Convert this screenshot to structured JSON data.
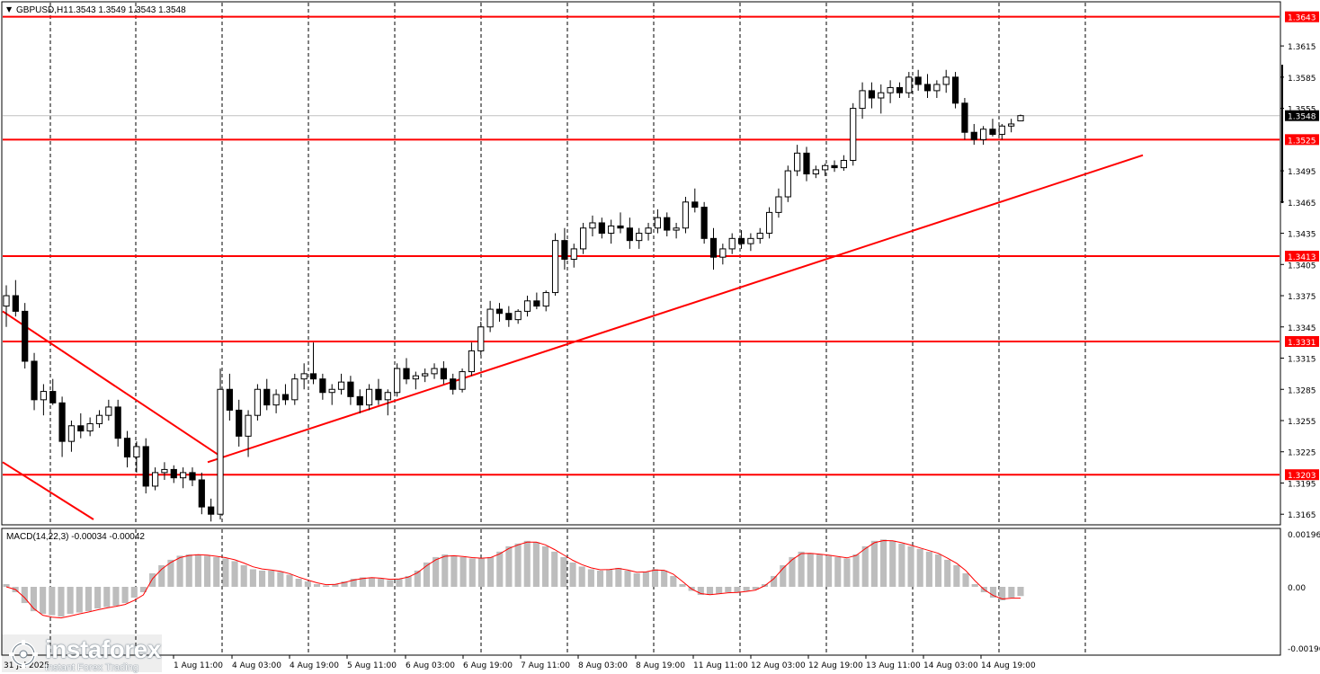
{
  "window": {
    "symbol_label": "GBPUSD,H1",
    "ohlc_label": "1.3543 1.3549 1.3543 1.3548",
    "menu_icon": "triangle-down-icon"
  },
  "indicator": {
    "label": "MACD(14,22,3) -0.00034 -0.00042",
    "scale": [
      "0.00196",
      "0.00",
      "-0.00196"
    ],
    "signal_color": "#ff0000",
    "hist_color": "#bdbdbd"
  },
  "price_axis": {
    "ticks": [
      "1.3615",
      "1.3585",
      "1.3555",
      "1.3495",
      "1.3465",
      "1.3435",
      "1.3405",
      "1.3375",
      "1.3345",
      "1.3315",
      "1.3285",
      "1.3255",
      "1.3225",
      "1.3195",
      "1.3165"
    ],
    "current": "1.3548"
  },
  "levels": [
    {
      "value": 1.3643,
      "label": "1.3643"
    },
    {
      "value": 1.3525,
      "label": "1.3525"
    },
    {
      "value": 1.3413,
      "label": "1.3413"
    },
    {
      "value": 1.3331,
      "label": "1.3331"
    },
    {
      "value": 1.3203,
      "label": "1.3203"
    }
  ],
  "time_axis": {
    "first_label": "31 Jul 2025",
    "labels": [
      "1 Aug 11:00",
      "4 Aug 03:00",
      "4 Aug 19:00",
      "5 Aug 11:00",
      "6 Aug 03:00",
      "6 Aug 19:00",
      "7 Aug 11:00",
      "8 Aug 03:00",
      "8 Aug 19:00",
      "11 Aug 11:00",
      "12 Aug 03:00",
      "12 Aug 19:00",
      "13 Aug 11:00",
      "14 Aug 03:00",
      "14 Aug 19:00"
    ]
  },
  "logo": {
    "name": "instaforex",
    "tagline": "Instant Forex Trading",
    "icon": "instaforex-logo-icon"
  },
  "colors": {
    "level_line": "#ff0000",
    "candle": "#000000",
    "grid": "#000000",
    "label_bg": "#ff0000",
    "current_label_bg": "#000000"
  },
  "chart_data": {
    "type": "candlestick",
    "series": [
      {
        "name": "GBPUSD,H1",
        "values": [
          [
            1.3365,
            1.3385,
            1.3345,
            1.3375
          ],
          [
            1.3375,
            1.339,
            1.3355,
            1.336
          ],
          [
            1.336,
            1.3368,
            1.3305,
            1.3312
          ],
          [
            1.3312,
            1.332,
            1.3265,
            1.3275
          ],
          [
            1.3275,
            1.329,
            1.326,
            1.3283
          ],
          [
            1.3283,
            1.3295,
            1.327,
            1.3272
          ],
          [
            1.3272,
            1.3278,
            1.322,
            1.3235
          ],
          [
            1.3235,
            1.3255,
            1.3225,
            1.325
          ],
          [
            1.325,
            1.3262,
            1.3238,
            1.3245
          ],
          [
            1.3245,
            1.3258,
            1.324,
            1.3252
          ],
          [
            1.3252,
            1.3265,
            1.3248,
            1.326
          ],
          [
            1.326,
            1.3275,
            1.3255,
            1.3268
          ],
          [
            1.3268,
            1.3275,
            1.323,
            1.3238
          ],
          [
            1.3238,
            1.3245,
            1.321,
            1.322
          ],
          [
            1.322,
            1.3235,
            1.3205,
            1.323
          ],
          [
            1.323,
            1.3238,
            1.3185,
            1.3192
          ],
          [
            1.3192,
            1.321,
            1.3188,
            1.3205
          ],
          [
            1.3205,
            1.3215,
            1.3198,
            1.3208
          ],
          [
            1.3208,
            1.3212,
            1.3195,
            1.32
          ],
          [
            1.32,
            1.321,
            1.319,
            1.3205
          ],
          [
            1.3205,
            1.321,
            1.3192,
            1.3198
          ],
          [
            1.3198,
            1.3205,
            1.3165,
            1.3172
          ],
          [
            1.3172,
            1.318,
            1.3158,
            1.3165
          ],
          [
            1.3165,
            1.3305,
            1.316,
            1.3285
          ],
          [
            1.3285,
            1.33,
            1.3255,
            1.3265
          ],
          [
            1.3265,
            1.3275,
            1.323,
            1.324
          ],
          [
            1.324,
            1.3265,
            1.322,
            1.326
          ],
          [
            1.326,
            1.329,
            1.3255,
            1.3285
          ],
          [
            1.3285,
            1.3295,
            1.3265,
            1.327
          ],
          [
            1.327,
            1.3285,
            1.3262,
            1.328
          ],
          [
            1.328,
            1.329,
            1.327,
            1.3275
          ],
          [
            1.3275,
            1.33,
            1.327,
            1.3295
          ],
          [
            1.3295,
            1.331,
            1.3285,
            1.33
          ],
          [
            1.33,
            1.333,
            1.329,
            1.3295
          ],
          [
            1.3295,
            1.33,
            1.3275,
            1.3282
          ],
          [
            1.3282,
            1.329,
            1.327,
            1.3285
          ],
          [
            1.3285,
            1.33,
            1.328,
            1.3292
          ],
          [
            1.3292,
            1.3298,
            1.327,
            1.3278
          ],
          [
            1.3278,
            1.3285,
            1.3262,
            1.327
          ],
          [
            1.327,
            1.329,
            1.3265,
            1.3285
          ],
          [
            1.3285,
            1.3295,
            1.327,
            1.3275
          ],
          [
            1.3275,
            1.3285,
            1.326,
            1.3282
          ],
          [
            1.3282,
            1.331,
            1.3278,
            1.3305
          ],
          [
            1.3305,
            1.3315,
            1.329,
            1.3295
          ],
          [
            1.3295,
            1.3302,
            1.3285,
            1.3298
          ],
          [
            1.3298,
            1.3305,
            1.3292,
            1.33
          ],
          [
            1.33,
            1.331,
            1.3295,
            1.3305
          ],
          [
            1.3305,
            1.3312,
            1.329,
            1.3295
          ],
          [
            1.3295,
            1.33,
            1.328,
            1.3285
          ],
          [
            1.3285,
            1.3305,
            1.3282,
            1.3302
          ],
          [
            1.3302,
            1.333,
            1.3298,
            1.3322
          ],
          [
            1.3322,
            1.335,
            1.3318,
            1.3345
          ],
          [
            1.3345,
            1.337,
            1.334,
            1.3362
          ],
          [
            1.3362,
            1.3368,
            1.335,
            1.3358
          ],
          [
            1.3358,
            1.3365,
            1.3345,
            1.3352
          ],
          [
            1.3352,
            1.3362,
            1.3348,
            1.336
          ],
          [
            1.336,
            1.3375,
            1.3355,
            1.337
          ],
          [
            1.337,
            1.3378,
            1.3362,
            1.3365
          ],
          [
            1.3365,
            1.338,
            1.336,
            1.3378
          ],
          [
            1.3378,
            1.3435,
            1.3375,
            1.3428
          ],
          [
            1.3428,
            1.344,
            1.34,
            1.341
          ],
          [
            1.341,
            1.3425,
            1.3402,
            1.342
          ],
          [
            1.342,
            1.3445,
            1.3415,
            1.344
          ],
          [
            1.344,
            1.3452,
            1.3432,
            1.3445
          ],
          [
            1.3445,
            1.345,
            1.343,
            1.3435
          ],
          [
            1.3435,
            1.3448,
            1.3425,
            1.3442
          ],
          [
            1.3442,
            1.3455,
            1.3435,
            1.344
          ],
          [
            1.344,
            1.345,
            1.342,
            1.3428
          ],
          [
            1.3428,
            1.344,
            1.342,
            1.3435
          ],
          [
            1.3435,
            1.3445,
            1.3428,
            1.344
          ],
          [
            1.344,
            1.3458,
            1.3435,
            1.345
          ],
          [
            1.345,
            1.3455,
            1.3432,
            1.3438
          ],
          [
            1.3438,
            1.3445,
            1.343,
            1.344
          ],
          [
            1.344,
            1.347,
            1.3435,
            1.3465
          ],
          [
            1.3465,
            1.3478,
            1.3455,
            1.346
          ],
          [
            1.346,
            1.3465,
            1.3425,
            1.343
          ],
          [
            1.343,
            1.344,
            1.34,
            1.3412
          ],
          [
            1.3412,
            1.3425,
            1.3405,
            1.342
          ],
          [
            1.342,
            1.3435,
            1.3415,
            1.343
          ],
          [
            1.343,
            1.3438,
            1.342,
            1.3425
          ],
          [
            1.3425,
            1.3435,
            1.3418,
            1.343
          ],
          [
            1.343,
            1.344,
            1.3425,
            1.3435
          ],
          [
            1.3435,
            1.346,
            1.343,
            1.3455
          ],
          [
            1.3455,
            1.3478,
            1.345,
            1.347
          ],
          [
            1.347,
            1.35,
            1.3465,
            1.3495
          ],
          [
            1.3495,
            1.352,
            1.349,
            1.3512
          ],
          [
            1.3512,
            1.3518,
            1.3485,
            1.3492
          ],
          [
            1.3492,
            1.35,
            1.3488,
            1.3496
          ],
          [
            1.3496,
            1.3502,
            1.349,
            1.35
          ],
          [
            1.35,
            1.3505,
            1.3494,
            1.3498
          ],
          [
            1.3498,
            1.351,
            1.3495,
            1.3505
          ],
          [
            1.3505,
            1.356,
            1.35,
            1.3555
          ],
          [
            1.3555,
            1.358,
            1.3545,
            1.3572
          ],
          [
            1.3572,
            1.358,
            1.3555,
            1.3565
          ],
          [
            1.3565,
            1.3578,
            1.355,
            1.357
          ],
          [
            1.357,
            1.3582,
            1.356,
            1.3575
          ],
          [
            1.3575,
            1.358,
            1.3565,
            1.357
          ],
          [
            1.357,
            1.359,
            1.3565,
            1.3585
          ],
          [
            1.3585,
            1.3592,
            1.3572,
            1.3578
          ],
          [
            1.3578,
            1.3588,
            1.3565,
            1.3572
          ],
          [
            1.3572,
            1.3582,
            1.3565,
            1.3578
          ],
          [
            1.3578,
            1.3592,
            1.357,
            1.3585
          ],
          [
            1.3585,
            1.359,
            1.3555,
            1.356
          ],
          [
            1.356,
            1.3565,
            1.3525,
            1.3532
          ],
          [
            1.3532,
            1.354,
            1.352,
            1.3525
          ],
          [
            1.3525,
            1.3538,
            1.352,
            1.3535
          ],
          [
            1.3535,
            1.3545,
            1.3528,
            1.353
          ],
          [
            1.353,
            1.354,
            1.3525,
            1.3538
          ],
          [
            1.3538,
            1.3545,
            1.3532,
            1.354
          ],
          [
            1.3543,
            1.3549,
            1.3543,
            1.3548
          ]
        ]
      },
      {
        "name": "MACD(14,22,3)",
        "values": [
          0.0001,
          -0.0002,
          -0.0006,
          -0.0009,
          -0.001,
          -0.00105,
          -0.0011,
          -0.001,
          -0.00095,
          -0.0009,
          -0.0008,
          -0.00075,
          -0.0007,
          -0.0006,
          -0.0004,
          -0.0002,
          0.0005,
          0.0008,
          0.001,
          0.00115,
          0.0012,
          0.0012,
          0.00115,
          0.0011,
          0.00105,
          0.00095,
          0.0008,
          0.00065,
          0.0006,
          0.0006,
          0.00055,
          0.00045,
          0.0003,
          0.0002,
          0.0001,
          5e-05,
          0.0001,
          0.0002,
          0.0003,
          0.00035,
          0.00035,
          0.0003,
          0.00025,
          0.0003,
          0.0004,
          0.0006,
          0.0009,
          0.0011,
          0.0012,
          0.00115,
          0.0011,
          0.00105,
          0.00105,
          0.0011,
          0.0013,
          0.0015,
          0.0016,
          0.0017,
          0.00165,
          0.0015,
          0.0013,
          0.0011,
          0.0009,
          0.00075,
          0.00065,
          0.0006,
          0.00065,
          0.0007,
          0.0006,
          0.0005,
          0.00055,
          0.00065,
          0.0006,
          0.0004,
          0.0001,
          -0.00015,
          -0.0003,
          -0.0003,
          -0.00025,
          -0.0002,
          -0.0002,
          -0.00015,
          -0.0001,
          0.0001,
          0.0004,
          0.0008,
          0.0011,
          0.0013,
          0.00125,
          0.0012,
          0.00115,
          0.0011,
          0.00105,
          0.0012,
          0.0015,
          0.0017,
          0.00175,
          0.0017,
          0.0016,
          0.0015,
          0.0014,
          0.0013,
          0.0012,
          0.001,
          0.0008,
          0.0005,
          0.0001,
          -0.0002,
          -0.0004,
          -0.0005,
          -0.0004,
          -0.00034
        ]
      }
    ],
    "signal": [
      0.0,
      -0.0001,
      -0.0004,
      -0.0008,
      -0.00105,
      -0.00112,
      -0.00115,
      -0.00108,
      -0.001,
      -0.00093,
      -0.00085,
      -0.00078,
      -0.00072,
      -0.00065,
      -0.0005,
      -0.0003,
      0.0003,
      0.00065,
      0.0009,
      0.00108,
      0.00116,
      0.00119,
      0.00117,
      0.00113,
      0.00108,
      0.001,
      0.00088,
      0.00074,
      0.00066,
      0.00062,
      0.00057,
      0.00049,
      0.00036,
      0.00025,
      0.00015,
      8e-05,
      9e-05,
      0.00016,
      0.00025,
      0.00031,
      0.00034,
      0.00032,
      0.00028,
      0.00029,
      0.00036,
      0.00052,
      0.00078,
      0.001,
      0.00113,
      0.00115,
      0.00112,
      0.00108,
      0.00106,
      0.00108,
      0.00122,
      0.00142,
      0.00155,
      0.00165,
      0.00165,
      0.00155,
      0.00138,
      0.00118,
      0.00098,
      0.00082,
      0.0007,
      0.00063,
      0.00064,
      0.00068,
      0.00062,
      0.00054,
      0.00055,
      0.00062,
      0.00061,
      0.00047,
      0.0002,
      -8e-05,
      -0.00025,
      -0.00029,
      -0.00026,
      -0.00022,
      -0.00021,
      -0.00017,
      -0.00012,
      4e-05,
      0.0003,
      0.00068,
      0.001,
      0.00123,
      0.00124,
      0.00121,
      0.00117,
      0.00112,
      0.00107,
      0.00116,
      0.00141,
      0.00163,
      0.00171,
      0.0017,
      0.00163,
      0.00154,
      0.00144,
      0.00134,
      0.00124,
      0.00106,
      0.00087,
      0.0006,
      0.00023,
      -0.0001,
      -0.00032,
      -0.00045,
      -0.00042,
      -0.00042
    ],
    "trendlines": [
      {
        "from": [
          "31 Jul 2025",
          1.336
        ],
        "to": [
          "1 Aug 11:00",
          1.3222
        ]
      },
      {
        "from": [
          "31 Jul 2025",
          1.3215
        ],
        "to": [
          "1 Aug 03:00",
          1.316
        ]
      },
      {
        "from": [
          "1 Aug 11:00",
          1.3215
        ],
        "to": [
          "14 Aug 19:00+",
          1.351
        ]
      }
    ],
    "ylim": [
      1.316,
      1.366
    ]
  }
}
